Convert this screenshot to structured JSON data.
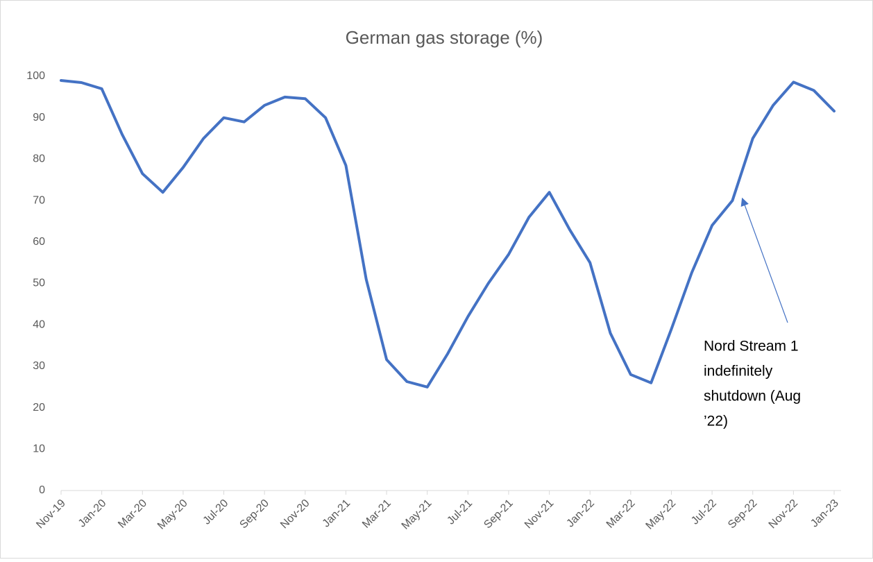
{
  "chart_data": {
    "type": "line",
    "title": "German gas storage (%)",
    "categories": [
      "Nov-19",
      null,
      "Jan-20",
      null,
      "Mar-20",
      null,
      "May-20",
      null,
      "Jul-20",
      null,
      "Sep-20",
      null,
      "Nov-20",
      null,
      "Jan-21",
      null,
      "Mar-21",
      null,
      "May-21",
      null,
      "Jul-21",
      null,
      "Sep-21",
      null,
      "Nov-21",
      null,
      "Jan-22",
      null,
      "Mar-22",
      null,
      "May-22",
      null,
      "Jul-22",
      null,
      "Sep-22",
      null,
      "Nov-22",
      null,
      "Jan-23"
    ],
    "series": [
      {
        "name": "German gas storage",
        "color": "#4472c4",
        "values": [
          99,
          98.5,
          97,
          86,
          76.5,
          72,
          78,
          85,
          90,
          89,
          93,
          95,
          94.6,
          90,
          78.5,
          51,
          31.6,
          26.3,
          25,
          33,
          42,
          50,
          57,
          66,
          72,
          63,
          55,
          38,
          28,
          26,
          39,
          52.6,
          64,
          70,
          85,
          93,
          98.6,
          96.6,
          91.6
        ]
      }
    ],
    "ylim": [
      0,
      100
    ],
    "yticks": [
      0,
      10,
      20,
      30,
      40,
      50,
      60,
      70,
      80,
      90,
      100
    ],
    "grid": false,
    "annotation": {
      "lines": [
        "Nord Stream 1",
        "indefinitely",
        "shutdown (Aug",
        "’22)"
      ]
    }
  }
}
